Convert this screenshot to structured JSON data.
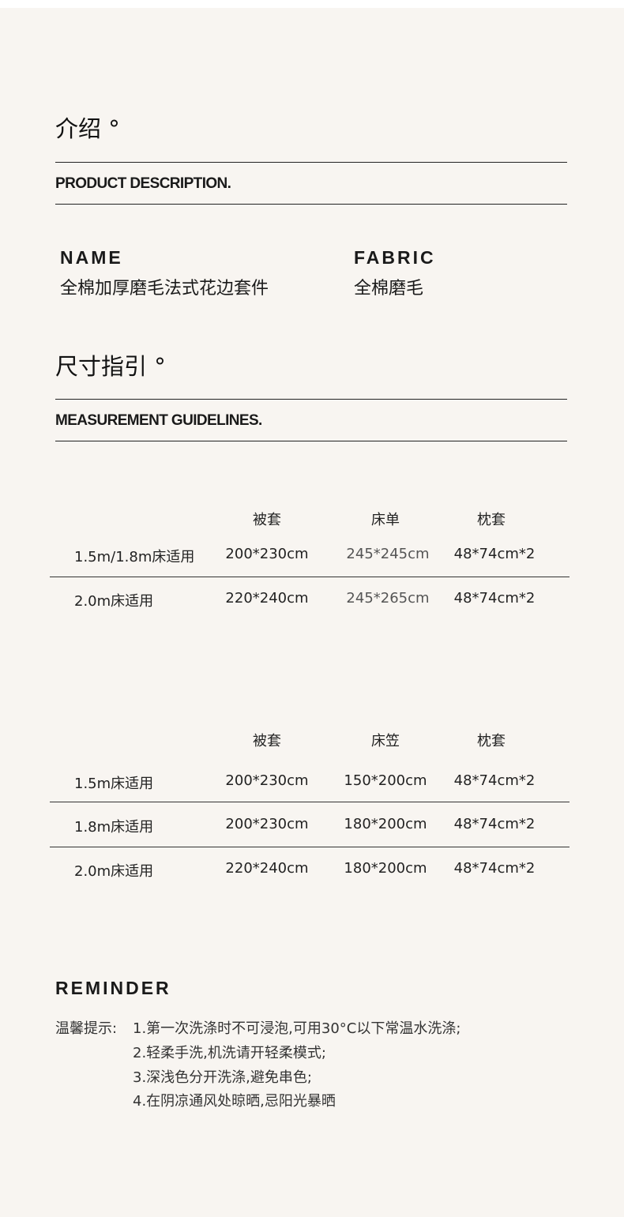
{
  "intro": {
    "title_cn": "介绍 °",
    "title_en": "PRODUCT DESCRIPTION.",
    "name_label": "NAME",
    "name_value": "全棉加厚磨毛法式花边套件",
    "fabric_label": "FABRIC",
    "fabric_value": "全棉磨毛"
  },
  "size": {
    "title_cn": "尺寸指引 °",
    "title_en": "MEASUREMENT GUIDELINES.",
    "table1": {
      "headers": [
        "",
        "被套",
        "床单",
        "枕套"
      ],
      "rows": [
        [
          "1.5m/1.8m床适用",
          "200*230cm",
          "245*245cm",
          "48*74cm*2"
        ],
        [
          "2.0m床适用",
          "220*240cm",
          "245*265cm",
          "48*74cm*2"
        ]
      ]
    },
    "table2": {
      "headers": [
        "",
        "被套",
        "床笠",
        "枕套"
      ],
      "rows": [
        [
          "1.5m床适用",
          "200*230cm",
          "150*200cm",
          "48*74cm*2"
        ],
        [
          "1.8m床适用",
          "200*230cm",
          "180*200cm",
          "48*74cm*2"
        ],
        [
          "2.0m床适用",
          "220*240cm",
          "180*200cm",
          "48*74cm*2"
        ]
      ]
    }
  },
  "reminder": {
    "title": "REMINDER",
    "label": "温馨提示:",
    "items": [
      "1.第一次洗涤时不可浸泡,可用30°C以下常温水洗涤;",
      "2.轻柔手洗,机洗请开轻柔模式;",
      "3.深浅色分开洗涤,避免串色;",
      "4.在阴凉通风处晾晒,忌阳光暴晒"
    ]
  },
  "colors": {
    "background": "#f8f5f1",
    "text": "#1a1a1a"
  }
}
